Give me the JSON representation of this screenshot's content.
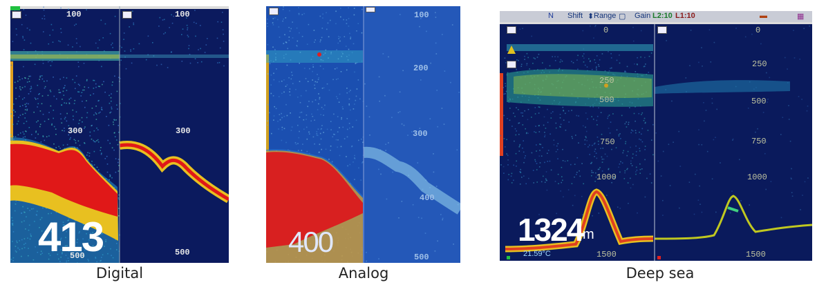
{
  "digital": {
    "caption": "Digital",
    "depth": "413",
    "ticks": [
      "100",
      "100",
      "300",
      "300",
      "500",
      "500"
    ]
  },
  "analog": {
    "caption": "Analog",
    "depth": "400",
    "ticks": [
      "100",
      "200",
      "300",
      "400",
      "500"
    ]
  },
  "deep": {
    "caption": "Deep sea",
    "depth": "1324",
    "unit": "m",
    "temperature": "21.59°C",
    "toolbar": {
      "shift": "Shift",
      "range": "Range",
      "gain": "Gain",
      "l2": "L2:10",
      "l1": "L1:10"
    },
    "ticks": [
      "0",
      "250",
      "500",
      "750",
      "1000",
      "1500",
      "0",
      "250",
      "500",
      "750",
      "1000",
      "1500"
    ]
  },
  "colors": {
    "screen_bg": "#0b1a5e",
    "analog_bg": "#1b4fb0",
    "echo_strong": "#e01818",
    "echo_mid": "#f0c020",
    "echo_weak": "#30d0c0"
  }
}
